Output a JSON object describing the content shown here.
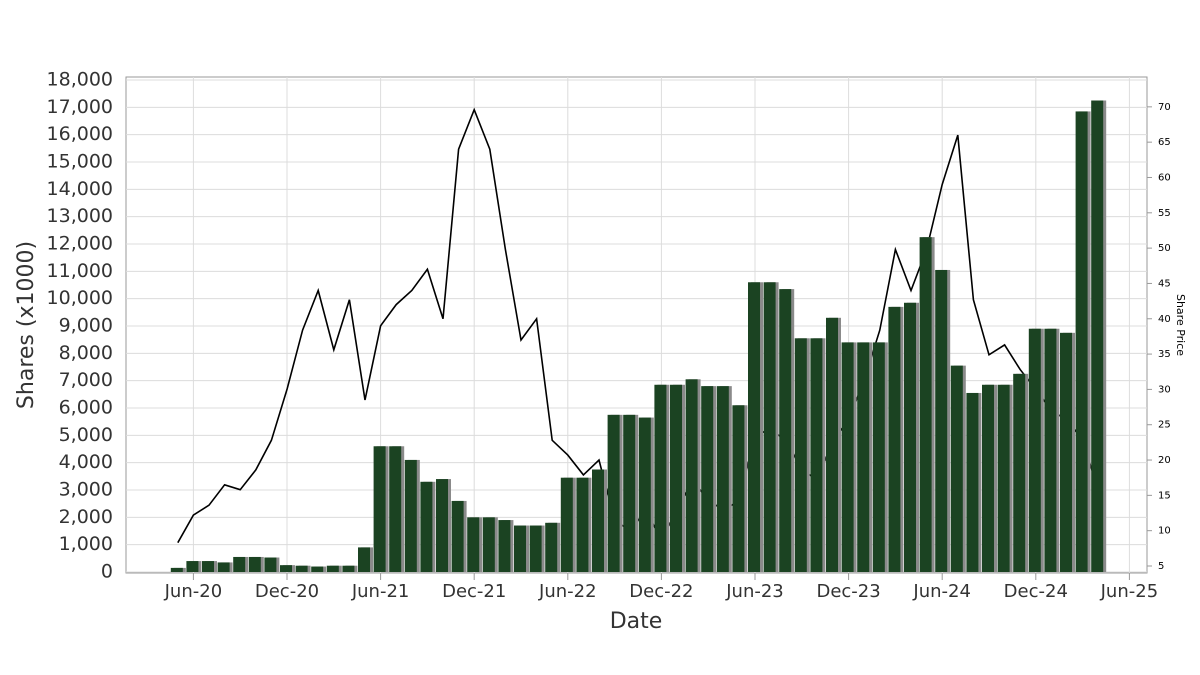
{
  "chart_data": {
    "type": "bar_line",
    "x_title": "Date",
    "y_title": "Shares (x1000)",
    "y2_title": "Share Price",
    "x": [
      "2020-05",
      "2020-06",
      "2020-07",
      "2020-08",
      "2020-09",
      "2020-10",
      "2020-11",
      "2020-12",
      "2021-01",
      "2021-02",
      "2021-03",
      "2021-04",
      "2021-05",
      "2021-06",
      "2021-07",
      "2021-08",
      "2021-09",
      "2021-10",
      "2021-11",
      "2021-12",
      "2022-01",
      "2022-02",
      "2022-03",
      "2022-04",
      "2022-05",
      "2022-06",
      "2022-07",
      "2022-08",
      "2022-09",
      "2022-10",
      "2022-11",
      "2022-12",
      "2023-01",
      "2023-02",
      "2023-03",
      "2023-04",
      "2023-05",
      "2023-06",
      "2023-07",
      "2023-08",
      "2023-09",
      "2023-10",
      "2023-11",
      "2023-12",
      "2024-01",
      "2024-02",
      "2024-03",
      "2024-04",
      "2024-05",
      "2024-06",
      "2024-07",
      "2024-08",
      "2024-09",
      "2024-10",
      "2024-11",
      "2024-12",
      "2025-01",
      "2025-02",
      "2025-03",
      "2025-04"
    ],
    "series": [
      {
        "type": "bar",
        "color": "#1b4322",
        "shadow": "#8a8a8a",
        "values": [
          150,
          400,
          400,
          350,
          550,
          550,
          530,
          250,
          230,
          200,
          230,
          230,
          900,
          4600,
          4600,
          4100,
          3300,
          3400,
          2600,
          2000,
          2000,
          1900,
          1700,
          1700,
          1800,
          3450,
          3450,
          3750,
          5750,
          5750,
          5650,
          6850,
          6850,
          7050,
          6800,
          6800,
          6100,
          10600,
          10600,
          10350,
          8550,
          8550,
          9300,
          8400,
          8400,
          8400,
          9700,
          9850,
          12250,
          11050,
          7550,
          6550,
          6850,
          6850,
          7250,
          8900,
          8900,
          8750,
          16850,
          17250
        ]
      },
      {
        "type": "line",
        "axis": "y2",
        "color": "#000000",
        "values": [
          8.3,
          12.2,
          13.6,
          16.5,
          15.8,
          18.6,
          22.8,
          30,
          38.4,
          44,
          35.6,
          42.7,
          28.5,
          39,
          42,
          44,
          47,
          40,
          64,
          69.6,
          64,
          49.8,
          37,
          40,
          22.8,
          20.7,
          17.9,
          20,
          11.5,
          10,
          12.9,
          8.7,
          12.9,
          17.2,
          14.3,
          12.9,
          14.3,
          23.6,
          24.3,
          22.8,
          18.6,
          17.2,
          22.8,
          25.7,
          31.3,
          38.4,
          49.8,
          44,
          49.8,
          59,
          66,
          42.7,
          34.9,
          36.3,
          32.8,
          30,
          27,
          25.7,
          22.8,
          15.8
        ]
      }
    ],
    "xlim": [
      "2020-02",
      "2025-07"
    ],
    "xticks": [
      {
        "value": "2020-06",
        "label": "Jun-20"
      },
      {
        "value": "2020-12",
        "label": "Dec-20"
      },
      {
        "value": "2021-06",
        "label": "Jun-21"
      },
      {
        "value": "2021-12",
        "label": "Dec-21"
      },
      {
        "value": "2022-06",
        "label": "Jun-22"
      },
      {
        "value": "2022-12",
        "label": "Dec-22"
      },
      {
        "value": "2023-06",
        "label": "Jun-23"
      },
      {
        "value": "2023-12",
        "label": "Dec-23"
      },
      {
        "value": "2024-06",
        "label": "Jun-24"
      },
      {
        "value": "2024-12",
        "label": "Dec-24"
      },
      {
        "value": "2025-06",
        "label": "Jun-25"
      }
    ],
    "ylim": [
      0,
      18000
    ],
    "yticks": [
      0,
      {
        "value": 1000,
        "label": "1,000"
      },
      {
        "value": 2000,
        "label": "2,000"
      },
      {
        "value": 3000,
        "label": "3,000"
      },
      {
        "value": 4000,
        "label": "4,000"
      },
      {
        "value": 5000,
        "label": "5,000"
      },
      {
        "value": 6000,
        "label": "6,000"
      },
      {
        "value": 7000,
        "label": "7,000"
      },
      {
        "value": 8000,
        "label": "8,000"
      },
      {
        "value": 9000,
        "label": "9,000"
      },
      {
        "value": 10000,
        "label": "10,000"
      },
      {
        "value": 11000,
        "label": "11,000"
      },
      {
        "value": 12000,
        "label": "12,000"
      },
      {
        "value": 13000,
        "label": "13,000"
      },
      {
        "value": 14000,
        "label": "14,000"
      },
      {
        "value": 15000,
        "label": "15,000"
      },
      {
        "value": 16000,
        "label": "16,000"
      },
      {
        "value": 17000,
        "label": "17,000"
      },
      {
        "value": 18000,
        "label": "18,000"
      }
    ],
    "y2lim": [
      4.15,
      73.8
    ],
    "y2ticks": [
      5,
      10,
      15,
      20,
      25,
      30,
      35,
      40,
      45,
      50,
      55,
      60,
      65,
      70
    ],
    "grid": true
  }
}
